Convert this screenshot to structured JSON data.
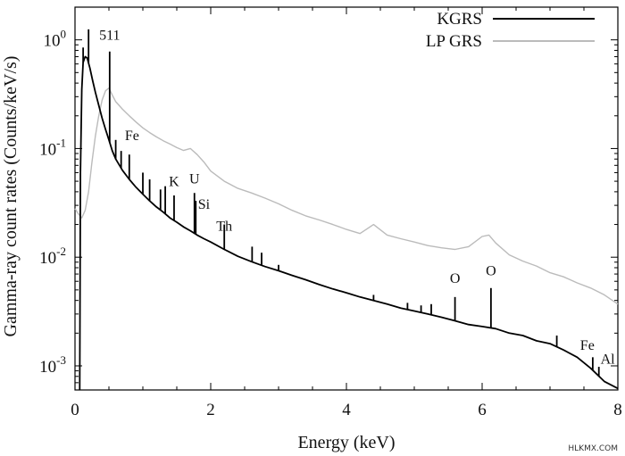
{
  "chart_data": {
    "type": "line",
    "title": "",
    "xlabel": "Energy (keV)",
    "ylabel": "Gamma-ray count rates (Counts/keV/s)",
    "xlim": [
      0,
      8
    ],
    "ylim": [
      0.0006,
      2.0
    ],
    "yscale": "log",
    "x_ticks": [
      0,
      2,
      4,
      6,
      8
    ],
    "x_tick_labels": [
      "0",
      "2",
      "4",
      "6",
      "8"
    ],
    "y_ticks": [
      0.001,
      0.01,
      0.1,
      1
    ],
    "y_tick_labels": [
      {
        "base": "10",
        "exp": "-3"
      },
      {
        "base": "10",
        "exp": "-2"
      },
      {
        "base": "10",
        "exp": "-1"
      },
      {
        "base": "10",
        "exp": "0"
      }
    ],
    "grid": false,
    "legend_position": "top-right",
    "series": [
      {
        "name": "KGRS",
        "color": "#000000",
        "x": [
          0.07,
          0.08,
          0.1,
          0.12,
          0.15,
          0.18,
          0.22,
          0.26,
          0.3,
          0.35,
          0.4,
          0.45,
          0.5,
          0.55,
          0.6,
          0.7,
          0.8,
          0.9,
          1.0,
          1.1,
          1.2,
          1.3,
          1.4,
          1.5,
          1.6,
          1.7,
          1.8,
          1.9,
          2.0,
          2.2,
          2.4,
          2.6,
          2.8,
          3.0,
          3.2,
          3.4,
          3.6,
          3.8,
          4.0,
          4.2,
          4.4,
          4.6,
          4.8,
          5.0,
          5.2,
          5.4,
          5.6,
          5.8,
          6.0,
          6.2,
          6.4,
          6.6,
          6.8,
          7.0,
          7.2,
          7.4,
          7.6,
          7.8,
          8.0
        ],
        "y": [
          0.0006,
          0.06,
          0.35,
          0.62,
          0.7,
          0.68,
          0.55,
          0.42,
          0.33,
          0.25,
          0.19,
          0.15,
          0.12,
          0.095,
          0.08,
          0.063,
          0.052,
          0.044,
          0.038,
          0.033,
          0.029,
          0.026,
          0.023,
          0.021,
          0.019,
          0.0175,
          0.016,
          0.0148,
          0.0138,
          0.0118,
          0.0102,
          0.0091,
          0.0082,
          0.0075,
          0.0068,
          0.0062,
          0.0056,
          0.0051,
          0.0047,
          0.0043,
          0.004,
          0.0037,
          0.0034,
          0.0032,
          0.003,
          0.0028,
          0.0026,
          0.0024,
          0.0023,
          0.0022,
          0.002,
          0.0019,
          0.0017,
          0.0016,
          0.0014,
          0.0012,
          0.00095,
          0.00072,
          0.00062
        ]
      },
      {
        "name": "LP GRS",
        "color": "#bbbbbb",
        "x": [
          0.0,
          0.05,
          0.1,
          0.15,
          0.2,
          0.25,
          0.3,
          0.35,
          0.4,
          0.45,
          0.5,
          0.55,
          0.6,
          0.7,
          0.8,
          0.9,
          1.0,
          1.1,
          1.2,
          1.3,
          1.4,
          1.5,
          1.6,
          1.7,
          1.8,
          1.9,
          2.0,
          2.2,
          2.4,
          2.6,
          2.8,
          3.0,
          3.2,
          3.4,
          3.6,
          3.8,
          4.0,
          4.2,
          4.4,
          4.6,
          4.8,
          5.0,
          5.2,
          5.4,
          5.6,
          5.8,
          6.0,
          6.1,
          6.2,
          6.4,
          6.6,
          6.8,
          7.0,
          7.2,
          7.4,
          7.6,
          7.8,
          8.0
        ],
        "y": [
          0.028,
          0.025,
          0.023,
          0.027,
          0.04,
          0.075,
          0.13,
          0.2,
          0.28,
          0.34,
          0.36,
          0.31,
          0.27,
          0.23,
          0.2,
          0.175,
          0.155,
          0.14,
          0.128,
          0.118,
          0.11,
          0.102,
          0.096,
          0.1,
          0.088,
          0.075,
          0.062,
          0.05,
          0.043,
          0.039,
          0.035,
          0.031,
          0.027,
          0.024,
          0.022,
          0.02,
          0.018,
          0.0165,
          0.02,
          0.016,
          0.0148,
          0.0138,
          0.0128,
          0.0122,
          0.0118,
          0.0125,
          0.0155,
          0.016,
          0.0135,
          0.0105,
          0.0092,
          0.0083,
          0.0072,
          0.0066,
          0.0058,
          0.0052,
          0.0045,
          0.0037
        ]
      }
    ],
    "peaks": [
      {
        "x": 0.12,
        "y": 0.85
      },
      {
        "x": 0.2,
        "y": 1.25
      },
      {
        "x": 0.511,
        "y": 0.78
      },
      {
        "x": 0.6,
        "y": 0.12
      },
      {
        "x": 0.68,
        "y": 0.095
      },
      {
        "x": 0.8,
        "y": 0.088
      },
      {
        "x": 1.0,
        "y": 0.06
      },
      {
        "x": 1.1,
        "y": 0.052
      },
      {
        "x": 1.26,
        "y": 0.042
      },
      {
        "x": 1.33,
        "y": 0.045
      },
      {
        "x": 1.46,
        "y": 0.037
      },
      {
        "x": 1.76,
        "y": 0.039
      },
      {
        "x": 1.78,
        "y": 0.033
      },
      {
        "x": 2.2,
        "y": 0.02
      },
      {
        "x": 2.61,
        "y": 0.0125
      },
      {
        "x": 2.75,
        "y": 0.011
      },
      {
        "x": 3.0,
        "y": 0.0085
      },
      {
        "x": 4.4,
        "y": 0.0045
      },
      {
        "x": 4.9,
        "y": 0.0038
      },
      {
        "x": 5.1,
        "y": 0.0036
      },
      {
        "x": 5.25,
        "y": 0.0037
      },
      {
        "x": 5.6,
        "y": 0.0043
      },
      {
        "x": 6.13,
        "y": 0.0052
      },
      {
        "x": 7.1,
        "y": 0.0019
      },
      {
        "x": 7.63,
        "y": 0.0012
      },
      {
        "x": 7.72,
        "y": 0.00098
      }
    ],
    "annotations": [
      {
        "text": "511",
        "x": 0.511,
        "y": 1.0
      },
      {
        "text": "Fe",
        "x": 0.84,
        "y": 0.12
      },
      {
        "text": "K",
        "x": 1.46,
        "y": 0.045
      },
      {
        "text": "U",
        "x": 1.76,
        "y": 0.048
      },
      {
        "text": "Si",
        "x": 1.9,
        "y": 0.028
      },
      {
        "text": "Th",
        "x": 2.2,
        "y": 0.0175
      },
      {
        "text": "O",
        "x": 5.6,
        "y": 0.0058
      },
      {
        "text": "O",
        "x": 6.13,
        "y": 0.0068
      },
      {
        "text": "Fe",
        "x": 7.55,
        "y": 0.0014
      },
      {
        "text": "Al",
        "x": 7.85,
        "y": 0.00105
      }
    ]
  },
  "watermark": "HLKMX.COM"
}
